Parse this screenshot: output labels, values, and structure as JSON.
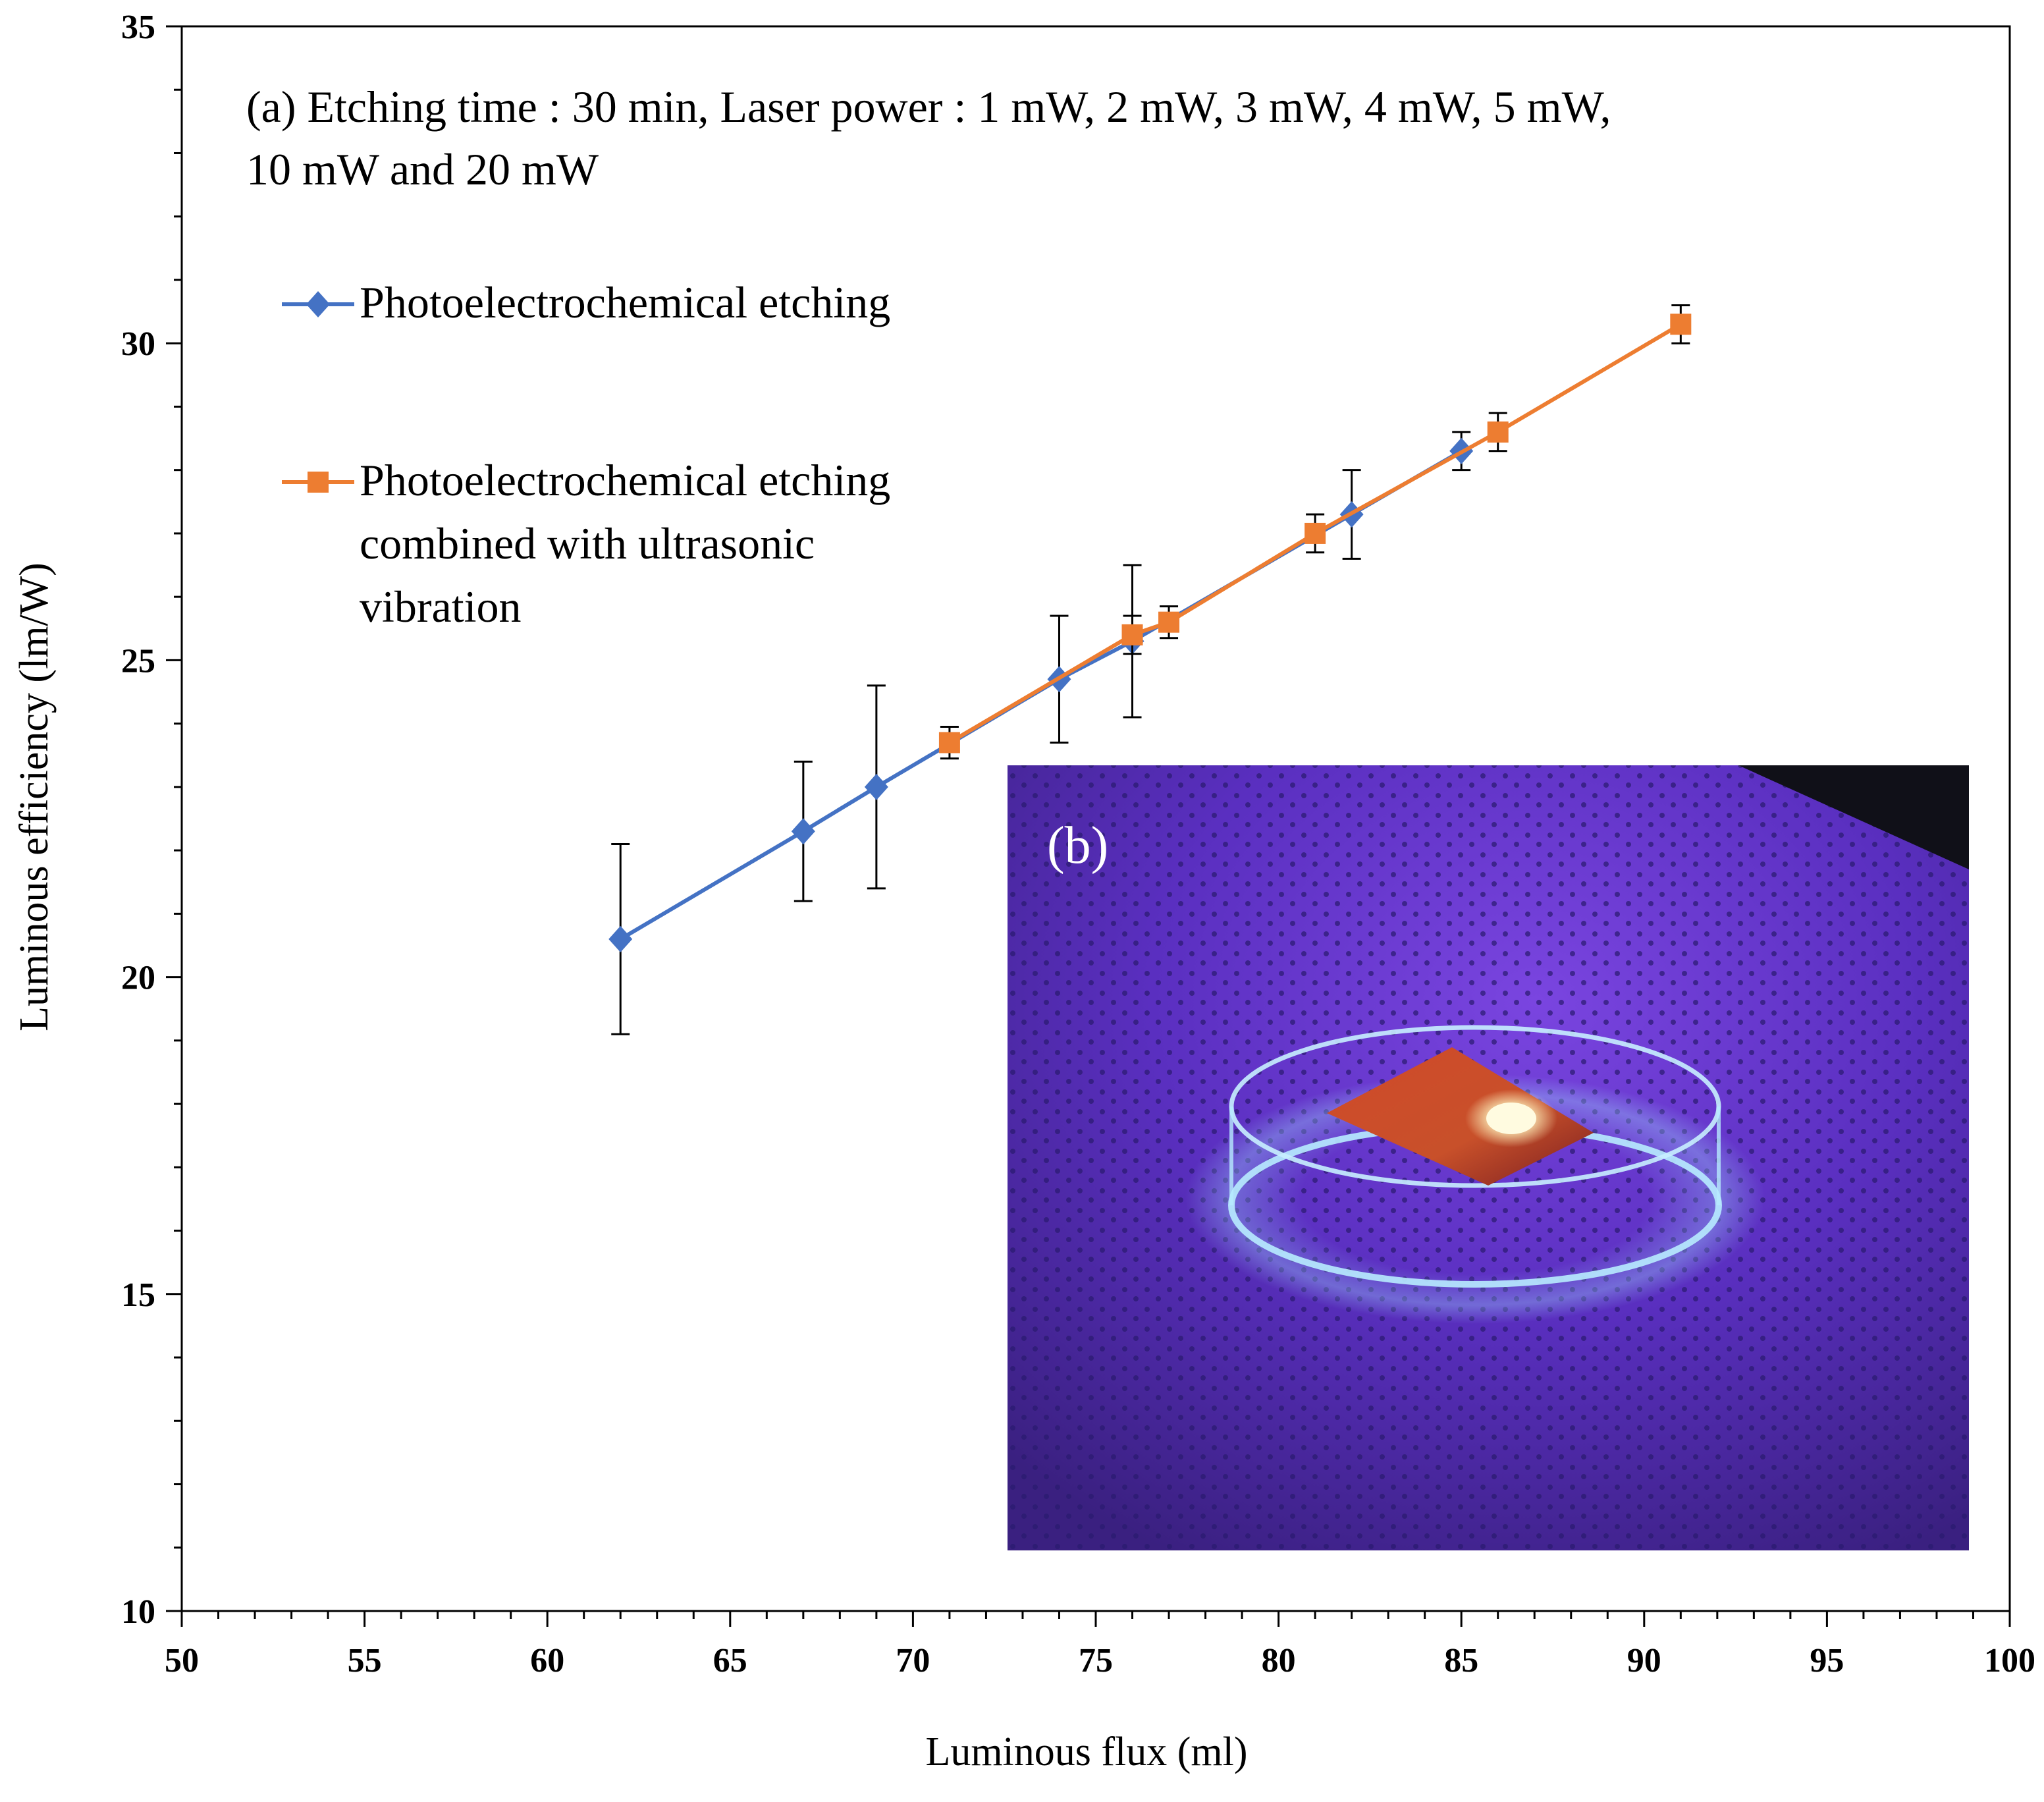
{
  "chart_data": {
    "type": "line",
    "title": "",
    "xlabel": "Luminous flux (ml)",
    "ylabel": "Luminous efficiency (lm/W)",
    "xlim": [
      50,
      100
    ],
    "ylim": [
      10,
      35
    ],
    "x_ticks": [
      "50",
      "55",
      "60",
      "65",
      "70",
      "75",
      "80",
      "85",
      "90",
      "95",
      "100"
    ],
    "y_ticks": [
      "10",
      "15",
      "20",
      "25",
      "30",
      "35"
    ],
    "annotation": {
      "line1": "(a) Etching time : 30 min, Laser power : 1 mW, 2 mW, 3 mW, 4 mW, 5 mW,",
      "line2": "10 mW and 20 mW"
    },
    "series": [
      {
        "name": "Photoelectrochemical etching",
        "legend_lines": [
          "Photoelectrochemical etching"
        ],
        "color": "#4472C4",
        "marker": "diamond",
        "x": [
          62,
          67,
          69,
          74,
          76,
          82,
          85
        ],
        "y": [
          20.6,
          22.3,
          23.0,
          24.7,
          25.3,
          27.3,
          28.3
        ],
        "err": [
          1.5,
          1.1,
          1.6,
          1.0,
          1.2,
          0.7,
          0.3
        ]
      },
      {
        "name": "Photoelectrochemical etching combined with ultrasonic vibration",
        "legend_lines": [
          "Photoelectrochemical etching",
          "combined with ultrasonic",
          "vibration"
        ],
        "color": "#ED7D31",
        "marker": "square",
        "x": [
          71,
          76,
          77,
          81,
          86,
          91
        ],
        "y": [
          23.7,
          25.4,
          25.6,
          27.0,
          28.6,
          30.3
        ],
        "err": [
          0.25,
          0.3,
          0.25,
          0.3,
          0.3,
          0.3
        ]
      }
    ],
    "inset": {
      "label": "(b)",
      "description_color": "#4a2a9a"
    }
  }
}
